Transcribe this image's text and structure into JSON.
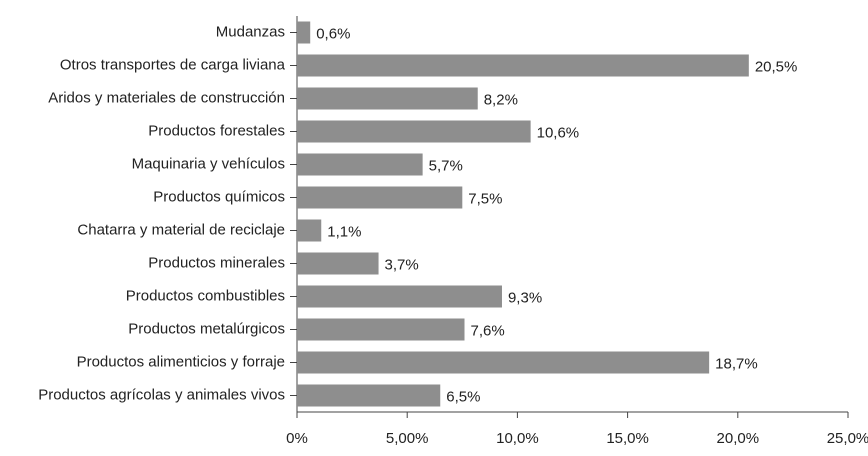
{
  "chart_data": {
    "type": "hbar",
    "categories": [
      "Mudanzas",
      "Otros transportes de carga liviana",
      "Aridos y materiales de construcción",
      "Productos forestales",
      "Maquinaria y vehículos",
      "Productos químicos",
      "Chatarra y material de reciclaje",
      "Productos minerales",
      "Productos combustibles",
      "Productos metalúrgicos",
      "Productos alimenticios y forraje",
      "Productos agrícolas y animales vivos"
    ],
    "values": [
      0.6,
      20.5,
      8.2,
      10.6,
      5.7,
      7.5,
      1.1,
      3.7,
      9.3,
      7.6,
      18.7,
      6.5
    ],
    "value_labels": [
      "0,6%",
      "20,5%",
      "8,2%",
      "10,6%",
      "5,7%",
      "7,5%",
      "1,1%",
      "3,7%",
      "9,3%",
      "7,6%",
      "18,7%",
      "6,5%"
    ],
    "color": "#8e8e8e",
    "xlim": [
      0,
      25
    ],
    "xticks": [
      {
        "value": 0,
        "label": "0%"
      },
      {
        "value": 5,
        "label": "5,00%"
      },
      {
        "value": 10,
        "label": "10,0%"
      },
      {
        "value": 15,
        "label": "15,0%"
      },
      {
        "value": 20,
        "label": "20,0%"
      },
      {
        "value": 25,
        "label": "25,0%"
      }
    ]
  }
}
